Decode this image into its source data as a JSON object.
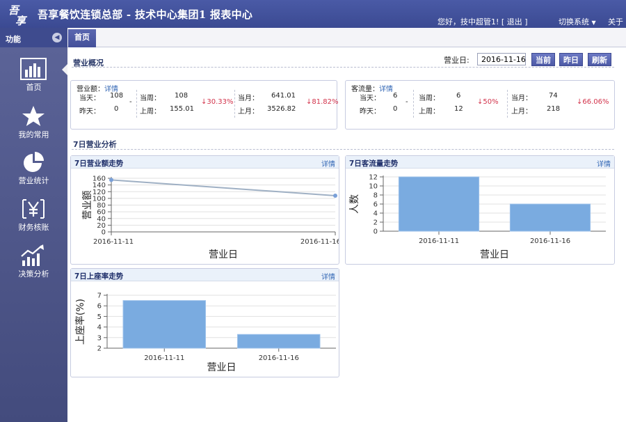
{
  "header": {
    "title": "吾享餐饮连锁总部 - 技术中心集团1 报表中心",
    "greeting": "您好，技中超管1!",
    "logout": "[ 退出 ]",
    "switch_system": "切换系统",
    "about": "关于"
  },
  "sidebar": {
    "title": "功能",
    "items": [
      {
        "label": "首页",
        "icon": "bar-chart-icon"
      },
      {
        "label": "我的常用",
        "icon": "star-icon"
      },
      {
        "label": "营业统计",
        "icon": "pie-chart-icon"
      },
      {
        "label": "财务核账",
        "icon": "yen-icon"
      },
      {
        "label": "决策分析",
        "icon": "trend-up-icon"
      }
    ]
  },
  "tabs": [
    {
      "label": "首页"
    }
  ],
  "overview": {
    "title": "营业概况",
    "date_label": "营业日:",
    "date_value": "2016-11-16",
    "btn_current": "当前",
    "btn_yesterday": "昨日",
    "btn_refresh": "刷新",
    "revenue": {
      "title": "营业额：",
      "detail": "详情",
      "today_label": "当天：",
      "today": "108",
      "yesterday_label": "昨天：",
      "yesterday": "0",
      "dash": "-",
      "this_week_label": "当周：",
      "this_week": "108",
      "last_week_label": "上周：",
      "last_week": "155.01",
      "week_change": "↓30.33%",
      "this_month_label": "当月：",
      "this_month": "641.01",
      "last_month_label": "上月：",
      "last_month": "3526.82",
      "month_change": "↓81.82%"
    },
    "traffic": {
      "title": "客流量：",
      "detail": "详情",
      "today_label": "当天：",
      "today": "6",
      "yesterday_label": "昨天：",
      "yesterday": "0",
      "dash": "-",
      "this_week_label": "当周：",
      "this_week": "6",
      "last_week_label": "上周：",
      "last_week": "12",
      "week_change": "↓50%",
      "this_month_label": "当月：",
      "this_month": "74",
      "last_month_label": "上月：",
      "last_month": "218",
      "month_change": "↓66.06%"
    }
  },
  "analysis": {
    "title": "7日营业分析",
    "detail": "详情",
    "chart_titles": [
      "7日营业额走势",
      "7日客流量走势",
      "7日上座率走势"
    ]
  },
  "colors": {
    "accent": "#4a5aa6",
    "bar": "#7aabe0",
    "line": "#9fb0c4",
    "down": "#d2324a"
  },
  "chart_data": [
    {
      "type": "line",
      "title": "7日营业额走势",
      "categories": [
        "2016-11-11",
        "2016-11-16"
      ],
      "series": [
        {
          "values": [
            155,
            108
          ]
        }
      ],
      "xlabel": "营业日",
      "ylabel": "营业额",
      "ylim": [
        0,
        160
      ],
      "yticks": [
        0,
        20,
        40,
        60,
        80,
        100,
        120,
        140,
        160
      ],
      "grid": true
    },
    {
      "type": "bar",
      "title": "7日客流量走势",
      "categories": [
        "2016-11-11",
        "2016-11-16"
      ],
      "values": [
        12,
        6
      ],
      "xlabel": "营业日",
      "ylabel": "人数",
      "ylim": [
        0,
        12
      ],
      "yticks": [
        0,
        2,
        4,
        6,
        8,
        10,
        12
      ],
      "grid": true
    },
    {
      "type": "bar",
      "title": "7日上座率走势",
      "categories": [
        "2016-11-11",
        "2016-11-16"
      ],
      "values": [
        6.5,
        3.3
      ],
      "xlabel": "营业日",
      "ylabel": "上座率(%)",
      "ylim": [
        2,
        7
      ],
      "yticks": [
        2,
        3,
        4,
        5,
        6,
        7
      ],
      "grid": true
    }
  ]
}
